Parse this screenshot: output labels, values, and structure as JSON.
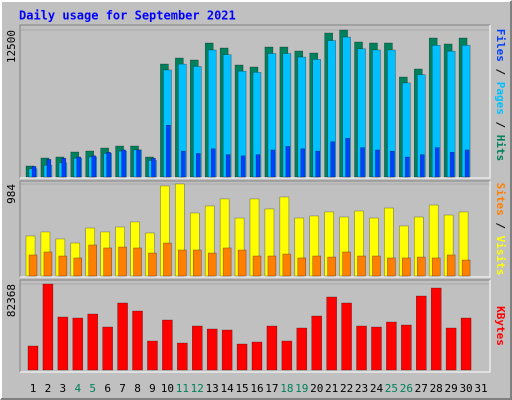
{
  "title": "Daily usage for September 2021",
  "legend_separator": "/",
  "categories": [
    "1",
    "2",
    "3",
    "4",
    "5",
    "6",
    "7",
    "8",
    "9",
    "10",
    "11",
    "12",
    "13",
    "14",
    "15",
    "16",
    "17",
    "18",
    "19",
    "20",
    "21",
    "22",
    "23",
    "24",
    "25",
    "26",
    "27",
    "28",
    "29",
    "30",
    "31"
  ],
  "category_colors": [
    "#000000",
    "#000000",
    "#000000",
    "#00805c",
    "#00805c",
    "#000000",
    "#000000",
    "#000000",
    "#000000",
    "#000000",
    "#00805c",
    "#00805c",
    "#000000",
    "#000000",
    "#000000",
    "#000000",
    "#000000",
    "#00805c",
    "#00805c",
    "#000000",
    "#000000",
    "#000000",
    "#000000",
    "#000000",
    "#00805c",
    "#00805c",
    "#000000",
    "#000000",
    "#000000",
    "#000000",
    "#000000"
  ],
  "chart_data": [
    {
      "type": "bar",
      "ylim": [
        0,
        12500
      ],
      "yticks": [
        12500
      ],
      "series": [
        {
          "name": "Hits",
          "color": "#00805c",
          "values": [
            935,
            1616,
            1700,
            2126,
            2211,
            2466,
            2636,
            2636,
            1700,
            9609,
            10119,
            9949,
            11395,
            10969,
            9524,
            9354,
            11054,
            11054,
            10714,
            10544,
            12245,
            12500,
            11480,
            11395,
            11395,
            8503,
            9184,
            11820,
            11310,
            11820,
            null
          ]
        },
        {
          "name": "Pages",
          "color": "#00c0ff",
          "values": [
            700,
            1000,
            1200,
            1600,
            1700,
            2000,
            2200,
            2300,
            1400,
            9100,
            9600,
            9400,
            10800,
            10400,
            9000,
            8900,
            10500,
            10500,
            10200,
            10000,
            11600,
            11900,
            10900,
            10800,
            10800,
            8000,
            8700,
            11200,
            10700,
            11200,
            null
          ]
        },
        {
          "name": "Files",
          "color": "#0040ff",
          "values": [
            900,
            1500,
            1600,
            1700,
            1800,
            2100,
            2300,
            2300,
            1600,
            4400,
            2200,
            2000,
            2400,
            1900,
            1800,
            1900,
            2300,
            2600,
            2400,
            2200,
            3000,
            3300,
            2500,
            2300,
            2200,
            1700,
            1900,
            2500,
            2100,
            2300,
            null
          ]
        }
      ]
    },
    {
      "type": "bar",
      "ylim": [
        0,
        984
      ],
      "yticks": [
        984
      ],
      "series": [
        {
          "name": "Visits",
          "color": "#ffff00",
          "values": [
            428,
            471,
            396,
            353,
            513,
            471,
            524,
            578,
            460,
            963,
            984,
            674,
            749,
            824,
            620,
            824,
            717,
            845,
            620,
            642,
            685,
            631,
            695,
            620,
            727,
            535,
            631,
            759,
            652,
            685,
            null
          ]
        },
        {
          "name": "Sites",
          "color": "#ff8000",
          "values": [
            225,
            257,
            214,
            193,
            332,
            300,
            310,
            300,
            246,
            353,
            278,
            278,
            246,
            300,
            278,
            214,
            214,
            235,
            193,
            214,
            203,
            257,
            214,
            214,
            193,
            193,
            203,
            193,
            225,
            171,
            null
          ]
        }
      ]
    },
    {
      "type": "bar",
      "ylim": [
        0,
        82368
      ],
      "yticks": [
        82368
      ],
      "series": [
        {
          "name": "KBytes",
          "color": "#ff0000",
          "values": [
            22987,
            82368,
            50762,
            49804,
            53635,
            41184,
            64170,
            56508,
            27775,
            47888,
            25860,
            42141,
            39269,
            38311,
            24902,
            26818,
            42141,
            27775,
            40226,
            51719,
            69916,
            64170,
            42141,
            41184,
            45973,
            43100,
            70875,
            78537,
            40226,
            49804,
            null
          ]
        }
      ]
    }
  ]
}
